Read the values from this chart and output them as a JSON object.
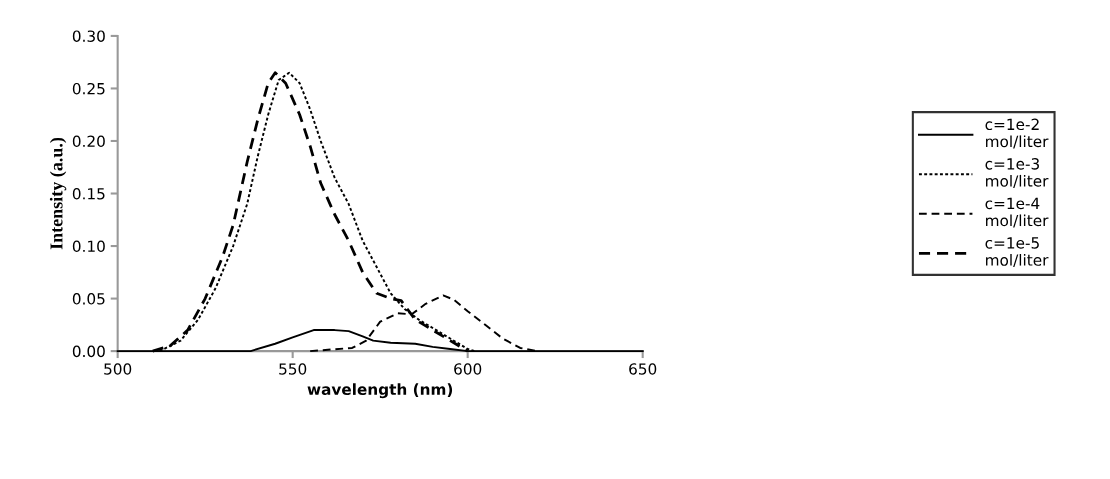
{
  "chart_data": {
    "type": "line",
    "xlabel": "wavelength (nm)",
    "ylabel": "Intensity (a.u.)",
    "xlim": [
      500,
      650
    ],
    "xticks": [
      500,
      550,
      600,
      650
    ],
    "ylim": [
      0,
      0.3
    ],
    "yticks": [
      {
        "value": 0,
        "label": "0.00"
      },
      {
        "value": 0.05,
        "label": "0.05"
      },
      {
        "value": 0.1,
        "label": "0.10"
      },
      {
        "value": 0.15,
        "label": "0.15"
      },
      {
        "value": 0.2,
        "label": "0.20"
      },
      {
        "value": 0.25,
        "label": "0.25"
      },
      {
        "value": 0.3,
        "label": "0.30"
      }
    ],
    "grid": false,
    "legend": "right",
    "marker": "none",
    "series": [
      {
        "name": "c=1e-2 mol/liter",
        "color": "#000000",
        "line_style": "solid",
        "x": [
          500,
          538,
          545,
          550,
          556,
          562,
          566,
          570,
          573,
          578,
          585,
          590,
          595,
          600,
          650
        ],
        "values": [
          0,
          0,
          0.007,
          0.013,
          0.02,
          0.02,
          0.019,
          0.014,
          0.01,
          0.008,
          0.007,
          0.004,
          0.002,
          0,
          0
        ]
      },
      {
        "name": "c=1e-3 mol/liter",
        "color": "#000000",
        "line_style": "dotted",
        "x": [
          512,
          518,
          523,
          528,
          533,
          537,
          540,
          543,
          546,
          549,
          552,
          555,
          558,
          562,
          566,
          570,
          574,
          578,
          582,
          586,
          590,
          595,
          600,
          602
        ],
        "values": [
          0,
          0.01,
          0.03,
          0.06,
          0.1,
          0.14,
          0.185,
          0.225,
          0.258,
          0.265,
          0.255,
          0.23,
          0.2,
          0.165,
          0.14,
          0.105,
          0.08,
          0.055,
          0.04,
          0.03,
          0.022,
          0.012,
          0.002,
          0
        ]
      },
      {
        "name": "c=1e-4 mol/liter",
        "color": "#000000",
        "line_style": "dashed",
        "x": [
          555,
          567,
          571,
          575,
          580,
          584,
          588,
          593,
          596,
          600,
          605,
          610,
          615,
          620
        ],
        "values": [
          0,
          0.003,
          0.01,
          0.028,
          0.036,
          0.035,
          0.045,
          0.053,
          0.049,
          0.038,
          0.025,
          0.012,
          0.003,
          0
        ]
      },
      {
        "name": "c=1e-5 mol/liter",
        "color": "#000000",
        "line_style": "dashed",
        "x": [
          510,
          515,
          520,
          525,
          530,
          533,
          537,
          540,
          543,
          545,
          548,
          552,
          555,
          558,
          562,
          566,
          570,
          574,
          578,
          581,
          585,
          590,
          595,
          600
        ],
        "values": [
          0,
          0.005,
          0.02,
          0.05,
          0.09,
          0.12,
          0.18,
          0.22,
          0.255,
          0.265,
          0.255,
          0.225,
          0.195,
          0.16,
          0.13,
          0.105,
          0.075,
          0.055,
          0.05,
          0.048,
          0.03,
          0.02,
          0.01,
          0
        ]
      }
    ]
  }
}
